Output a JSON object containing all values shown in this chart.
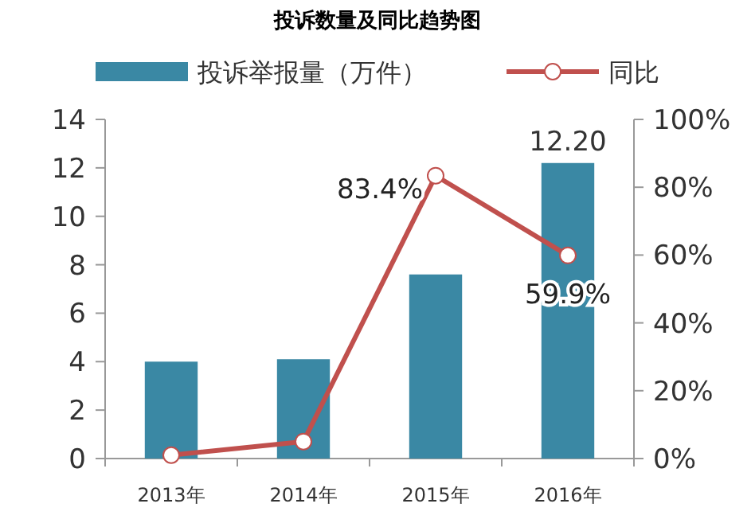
{
  "chart_data": {
    "type": "bar",
    "title": "投诉数量及同比趋势图",
    "categories": [
      "2013年",
      "2014年",
      "2015年",
      "2016年"
    ],
    "series": [
      {
        "name": "投诉举报量（万件）",
        "color": "#3a88a4",
        "values": [
          4.0,
          4.1,
          7.6,
          12.2
        ],
        "value_labels": [
          null,
          null,
          null,
          "12.20"
        ]
      },
      {
        "name": "同比",
        "type": "line",
        "axis": "y2",
        "color": "#c0504d",
        "marker": "circle",
        "values": [
          1,
          5,
          83.4,
          59.9
        ],
        "value_labels": [
          null,
          null,
          "83.4%",
          "59.9%"
        ]
      }
    ],
    "ylim": [
      0,
      14
    ],
    "yticks": [
      0,
      2,
      4,
      6,
      8,
      10,
      12,
      14
    ],
    "y2lim": [
      0,
      100
    ],
    "y2ticks": [
      {
        "value": 0,
        "label": "0%"
      },
      {
        "value": 20,
        "label": "20%"
      },
      {
        "value": 40,
        "label": "40%"
      },
      {
        "value": 60,
        "label": "60%"
      },
      {
        "value": 80,
        "label": "80%"
      },
      {
        "value": 100,
        "label": "100%"
      }
    ],
    "legend": "top",
    "grid": false
  }
}
